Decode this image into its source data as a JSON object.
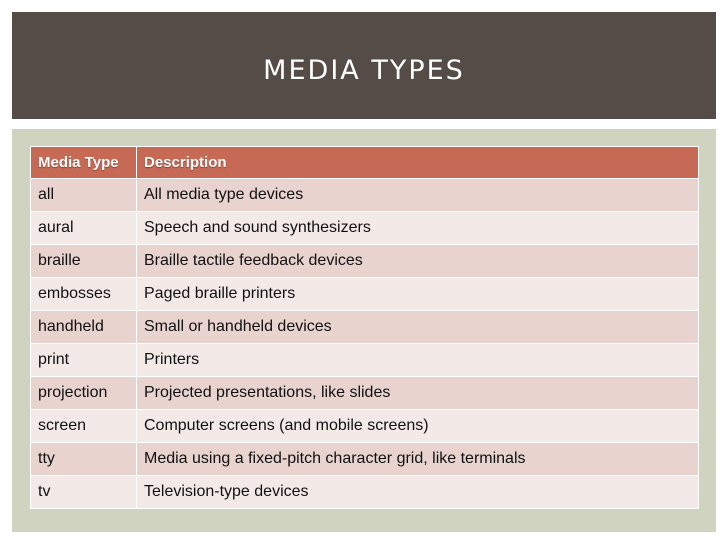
{
  "slide": {
    "title": "MEDIA TYPES"
  },
  "table": {
    "headers": [
      "Media Type",
      "Description"
    ],
    "rows": [
      [
        "all",
        "All media type devices"
      ],
      [
        "aural",
        "Speech and sound synthesizers"
      ],
      [
        "braille",
        "Braille tactile feedback devices"
      ],
      [
        "embosses",
        "Paged braille printers"
      ],
      [
        "handheld",
        "Small or handheld devices"
      ],
      [
        "print",
        "Printers"
      ],
      [
        "projection",
        "Projected presentations, like slides"
      ],
      [
        "screen",
        "Computer screens (and mobile screens)"
      ],
      [
        "tty",
        "Media using a fixed-pitch character grid, like terminals"
      ],
      [
        "tv",
        "Television-type devices"
      ]
    ]
  },
  "colors": {
    "title_bar": "#554c48",
    "panel": "#cfd3c0",
    "header": "#c66a56",
    "row_odd": "#e8d3cf",
    "row_even": "#f3e9e7"
  }
}
